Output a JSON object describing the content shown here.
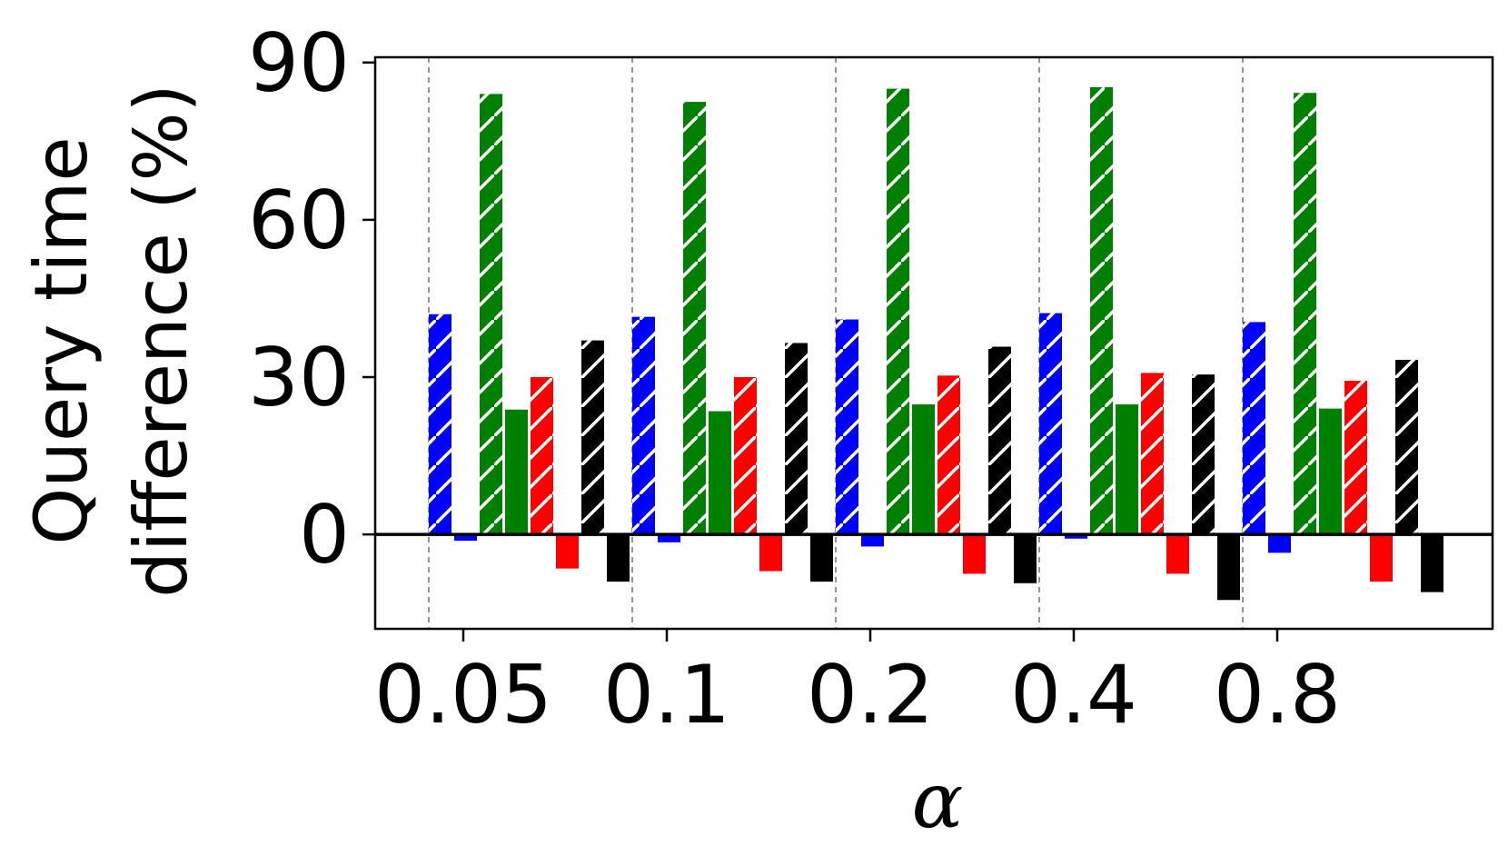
{
  "chart_data": {
    "type": "bar",
    "xlabel": "α",
    "ylabel_lines": [
      "Query time",
      "difference (%)"
    ],
    "ylim": [
      -18,
      91
    ],
    "yticks": [
      0,
      30,
      60,
      90
    ],
    "categories": [
      "0.05",
      "0.1",
      "0.2",
      "0.4",
      "0.8"
    ],
    "grid": "vertical dashed lines between category groups",
    "series": [
      {
        "color": "#0000ff",
        "hatched": true,
        "values": [
          42,
          41.5,
          41,
          42.2,
          40.5
        ]
      },
      {
        "color": "#0000ff",
        "hatched": false,
        "values": [
          -1.2,
          -1.5,
          -2.3,
          -0.8,
          -3.5
        ]
      },
      {
        "color": "#008000",
        "hatched": true,
        "values": [
          84,
          82.5,
          85,
          85.3,
          84.2
        ]
      },
      {
        "color": "#008000",
        "hatched": false,
        "values": [
          23.8,
          23.5,
          24.8,
          24.8,
          24
        ]
      },
      {
        "color": "#ff0000",
        "hatched": true,
        "values": [
          30,
          30,
          30.3,
          30.8,
          29.3
        ]
      },
      {
        "color": "#ff0000",
        "hatched": false,
        "values": [
          -6.5,
          -7,
          -7.5,
          -7.5,
          -9
        ]
      },
      {
        "color": "#000000",
        "hatched": true,
        "values": [
          37,
          36.5,
          35.8,
          30.5,
          33.3
        ]
      },
      {
        "color": "#000000",
        "hatched": false,
        "values": [
          -9,
          -9,
          -9.3,
          -12.5,
          -11
        ]
      }
    ]
  }
}
